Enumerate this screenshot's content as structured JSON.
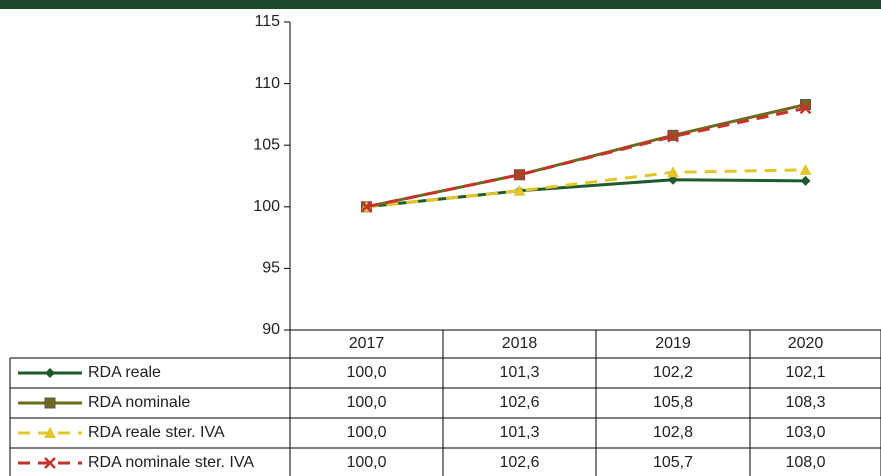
{
  "chart_data": {
    "type": "line",
    "categories": [
      "2017",
      "2018",
      "2019",
      "2020"
    ],
    "series": [
      {
        "name": "RDA reale",
        "color": "#1f5a2c",
        "dashed": false,
        "marker": "diamond",
        "values": [
          100.0,
          101.3,
          102.2,
          102.1
        ],
        "value_labels": [
          "100,0",
          "101,3",
          "102,2",
          "102,1"
        ]
      },
      {
        "name": "RDA nominale",
        "color": "#6e6a1e",
        "dashed": false,
        "marker": "square",
        "values": [
          100.0,
          102.6,
          105.8,
          108.3
        ],
        "value_labels": [
          "100,0",
          "102,6",
          "105,8",
          "108,3"
        ]
      },
      {
        "name": "RDA reale ster. IVA",
        "color": "#e2c62a",
        "dashed": true,
        "marker": "triangle",
        "values": [
          100.0,
          101.3,
          102.8,
          103.0
        ],
        "value_labels": [
          "100,0",
          "101,3",
          "102,8",
          "103,0"
        ]
      },
      {
        "name": "RDA nominale ster. IVA",
        "color": "#c8322a",
        "dashed": true,
        "marker": "x",
        "values": [
          100.0,
          102.6,
          105.7,
          108.0
        ],
        "value_labels": [
          "100,0",
          "102,6",
          "105,7",
          "108,0"
        ]
      }
    ],
    "ylim": [
      90,
      115
    ],
    "yticks": [
      90,
      95,
      100,
      105,
      110,
      115
    ],
    "grid": false
  }
}
